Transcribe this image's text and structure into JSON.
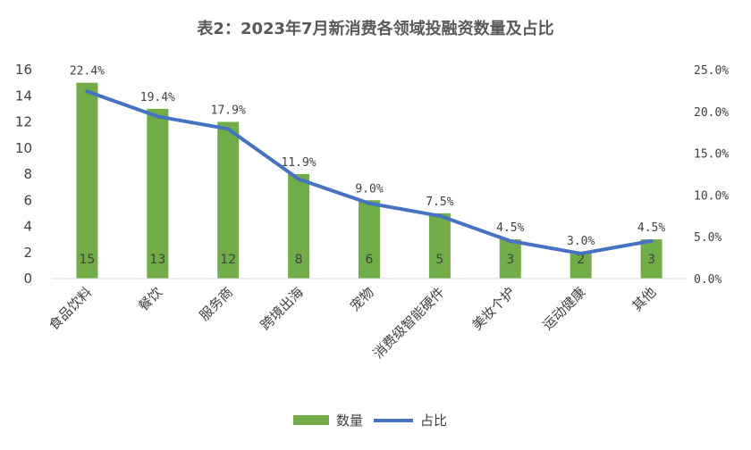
{
  "chart_data": {
    "type": "bar+line",
    "title": "表2：2023年7月新消费各领域投融资数量及占比",
    "categories": [
      "食品饮料",
      "餐饮",
      "服务商",
      "跨境出海",
      "宠物",
      "消费级智能硬件",
      "美妆个护",
      "运动健康",
      "其他"
    ],
    "series": [
      {
        "name": "数量",
        "type": "bar",
        "axis": "left",
        "color": "#70ad47",
        "values": [
          15,
          13,
          12,
          8,
          6,
          5,
          3,
          2,
          3
        ],
        "labels": [
          "15",
          "13",
          "12",
          "8",
          "6",
          "5",
          "3",
          "2",
          "3"
        ]
      },
      {
        "name": "占比",
        "type": "line",
        "axis": "right",
        "color": "#4472c4",
        "values": [
          22.4,
          19.4,
          17.9,
          11.9,
          9.0,
          7.5,
          4.5,
          3.0,
          4.5
        ],
        "labels": [
          "22.4%",
          "19.4%",
          "17.9%",
          "11.9%",
          "9.0%",
          "7.5%",
          "4.5%",
          "3.0%",
          "4.5%"
        ]
      }
    ],
    "y_left": {
      "min": 0,
      "max": 16,
      "ticks": [
        "0",
        "2",
        "4",
        "6",
        "8",
        "10",
        "12",
        "14",
        "16"
      ]
    },
    "y_right": {
      "min": 0,
      "max": 25,
      "ticks": [
        "0.0%",
        "5.0%",
        "10.0%",
        "15.0%",
        "20.0%",
        "25.0%"
      ]
    },
    "grid": false,
    "legend_position": "bottom"
  }
}
